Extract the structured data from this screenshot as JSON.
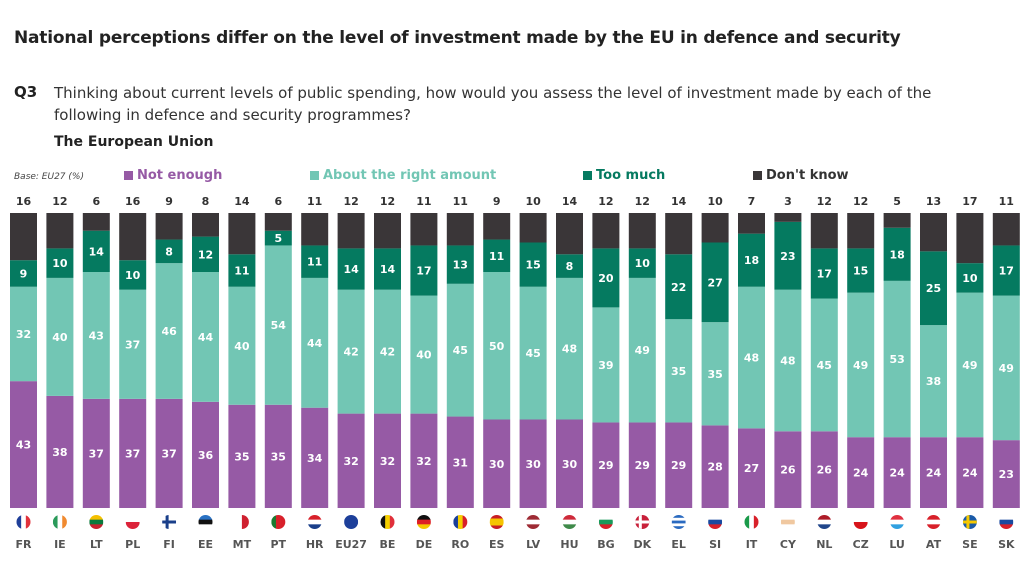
{
  "title": "National perceptions differ on the level of investment made by the EU in defence and security",
  "question": {
    "number": "Q3",
    "text": "Thinking about current levels of public spending, how would you assess the level of investment made by each of the following in defence and security programmes?"
  },
  "subtitle": "The European Union",
  "base": "Base: EU27 (%)",
  "colors": {
    "not_enough": "#965aa5",
    "right_amount": "#72c6b4",
    "too_much": "#057a60",
    "dont_know": "#3a3638"
  },
  "chart_data": {
    "type": "bar",
    "stacked": true,
    "orientation": "vertical",
    "ylim": [
      0,
      100
    ],
    "legend_position": "top",
    "categories": [
      "FR",
      "IE",
      "LT",
      "PL",
      "FI",
      "EE",
      "MT",
      "PT",
      "HR",
      "EU27",
      "BE",
      "DE",
      "RO",
      "ES",
      "LV",
      "HU",
      "BG",
      "DK",
      "EL",
      "SI",
      "IT",
      "CY",
      "NL",
      "CZ",
      "LU",
      "AT",
      "SE",
      "SK"
    ],
    "series": [
      {
        "name": "Not enough",
        "values": [
          43,
          38,
          37,
          37,
          37,
          36,
          35,
          35,
          34,
          32,
          32,
          32,
          31,
          30,
          30,
          30,
          29,
          29,
          29,
          28,
          27,
          26,
          26,
          24,
          24,
          24,
          24,
          23
        ]
      },
      {
        "name": "About the right amount",
        "values": [
          32,
          40,
          43,
          37,
          46,
          44,
          40,
          54,
          44,
          42,
          42,
          40,
          45,
          50,
          45,
          48,
          39,
          49,
          35,
          35,
          48,
          48,
          45,
          49,
          53,
          38,
          49,
          49
        ]
      },
      {
        "name": "Too much",
        "values": [
          9,
          10,
          14,
          10,
          8,
          12,
          11,
          5,
          11,
          14,
          14,
          17,
          13,
          11,
          15,
          8,
          20,
          10,
          22,
          27,
          18,
          23,
          17,
          15,
          18,
          25,
          10,
          17
        ]
      },
      {
        "name": "Don't know",
        "values": [
          16,
          12,
          6,
          16,
          9,
          8,
          14,
          6,
          11,
          12,
          12,
          11,
          11,
          9,
          10,
          14,
          12,
          12,
          14,
          10,
          7,
          3,
          12,
          12,
          5,
          13,
          17,
          11
        ]
      }
    ]
  },
  "flags": {
    "FR": {
      "dir": "v",
      "c": [
        "#1f3f99",
        "#ffffff",
        "#e1313b"
      ]
    },
    "IE": {
      "dir": "v",
      "c": [
        "#2a9a5a",
        "#ffffff",
        "#f08a30"
      ]
    },
    "LT": {
      "dir": "h",
      "c": [
        "#f5c000",
        "#0a7a3d",
        "#c8202f"
      ]
    },
    "PL": {
      "dir": "h",
      "c": [
        "#ffffff",
        "#dc233a"
      ]
    },
    "FI": {
      "dir": "cross",
      "c": [
        "#ffffff",
        "#1a3f8a"
      ]
    },
    "EE": {
      "dir": "h",
      "c": [
        "#2a72c4",
        "#111111",
        "#ffffff"
      ]
    },
    "MT": {
      "dir": "v",
      "c": [
        "#ffffff",
        "#cf2030"
      ]
    },
    "PT": {
      "dir": "v",
      "c": [
        "#1a7a30",
        "#d8202a",
        "#d8202a"
      ]
    },
    "HR": {
      "dir": "h",
      "c": [
        "#d8202a",
        "#ffffff",
        "#1a3f8a"
      ]
    },
    "EU27": {
      "dir": "h",
      "c": [
        "#1d3f9a"
      ]
    },
    "BE": {
      "dir": "v",
      "c": [
        "#111111",
        "#f5d000",
        "#e0303a"
      ]
    },
    "DE": {
      "dir": "h",
      "c": [
        "#111111",
        "#dd1f26",
        "#f5c800"
      ]
    },
    "RO": {
      "dir": "v",
      "c": [
        "#1a3f99",
        "#f5cf00",
        "#d8202a"
      ]
    },
    "ES": {
      "dir": "h",
      "c": [
        "#c81d25",
        "#f5c400",
        "#f5c400",
        "#c81d25"
      ]
    },
    "LV": {
      "dir": "h",
      "c": [
        "#9e2b35",
        "#ffffff",
        "#9e2b35"
      ]
    },
    "HU": {
      "dir": "h",
      "c": [
        "#ce2a3a",
        "#ffffff",
        "#3f8a4a"
      ]
    },
    "BG": {
      "dir": "h",
      "c": [
        "#ffffff",
        "#1a9a5a",
        "#d8202a"
      ]
    },
    "DK": {
      "dir": "cross",
      "c": [
        "#c8203a",
        "#ffffff"
      ]
    },
    "EL": {
      "dir": "h",
      "c": [
        "#2a6ac0",
        "#ffffff",
        "#2a6ac0",
        "#ffffff",
        "#2a6ac0"
      ]
    },
    "SI": {
      "dir": "h",
      "c": [
        "#ffffff",
        "#1a4aa0",
        "#d8202a"
      ]
    },
    "IT": {
      "dir": "v",
      "c": [
        "#1a9a4a",
        "#ffffff",
        "#d8202a"
      ]
    },
    "CY": {
      "dir": "h",
      "c": [
        "#ffffff",
        "#f0c8a0",
        "#ffffff"
      ]
    },
    "NL": {
      "dir": "h",
      "c": [
        "#ae1c28",
        "#ffffff",
        "#21468b"
      ]
    },
    "CZ": {
      "dir": "h",
      "c": [
        "#ffffff",
        "#d7141a"
      ]
    },
    "LU": {
      "dir": "h",
      "c": [
        "#e03040",
        "#ffffff",
        "#30a0e0"
      ]
    },
    "AT": {
      "dir": "h",
      "c": [
        "#d8202a",
        "#ffffff",
        "#d8202a"
      ]
    },
    "SE": {
      "dir": "cross",
      "c": [
        "#1a5aa8",
        "#f5c800"
      ]
    },
    "SK": {
      "dir": "h",
      "c": [
        "#ffffff",
        "#1a4aa0",
        "#d8202a"
      ]
    }
  }
}
